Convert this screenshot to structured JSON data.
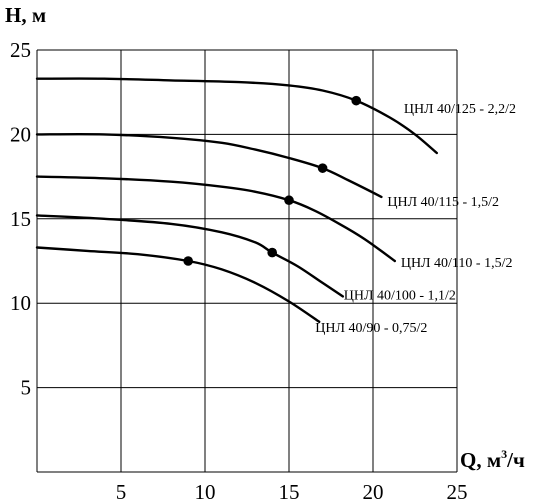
{
  "chart_data": {
    "type": "line",
    "title": "",
    "ylabel": "H, м",
    "xlabel_main": "Q, м",
    "xlabel_sup": "3",
    "xlabel_tail": "/ч",
    "xlim": [
      0,
      25
    ],
    "ylim": [
      0,
      25
    ],
    "x_ticks": [
      "5",
      "10",
      "15",
      "20",
      "25"
    ],
    "y_ticks": [
      "5",
      "10",
      "15",
      "20",
      "25"
    ],
    "grid": true,
    "series": [
      {
        "name": "ЦНЛ 40/125 - 2,2/2",
        "x": [
          0,
          4,
          8,
          12,
          15,
          17,
          19,
          21,
          22.5,
          23.8
        ],
        "y": [
          23.3,
          23.3,
          23.2,
          23.1,
          22.9,
          22.6,
          22.0,
          21.0,
          20.0,
          18.9
        ],
        "point": [
          19,
          22.0
        ]
      },
      {
        "name": "ЦНЛ 40/115 - 1,5/2",
        "x": [
          0,
          4,
          8,
          11,
          13,
          15,
          17,
          18.5,
          20.5
        ],
        "y": [
          20.0,
          20.0,
          19.8,
          19.5,
          19.1,
          18.6,
          18.0,
          17.3,
          16.3
        ],
        "point": [
          17,
          18.0
        ]
      },
      {
        "name": "ЦНЛ 40/110 - 1,5/2",
        "x": [
          0,
          4,
          8,
          11,
          13,
          15,
          16.5,
          18,
          19.5,
          21.3
        ],
        "y": [
          17.5,
          17.4,
          17.2,
          16.9,
          16.6,
          16.1,
          15.5,
          14.7,
          13.8,
          12.5
        ],
        "point": [
          15,
          16.1
        ]
      },
      {
        "name": "ЦНЛ 40/100 - 1,1/2",
        "x": [
          0,
          4,
          8,
          11,
          13,
          14,
          15.5,
          17,
          18.2
        ],
        "y": [
          15.2,
          15.0,
          14.7,
          14.2,
          13.6,
          13.0,
          12.2,
          11.2,
          10.4
        ],
        "point": [
          14,
          13.0
        ]
      },
      {
        "name": "ЦНЛ 40/90 - 0,75/2",
        "x": [
          0,
          3,
          6,
          9,
          11,
          13,
          15,
          16.8
        ],
        "y": [
          13.3,
          13.1,
          12.9,
          12.5,
          12.0,
          11.2,
          10.1,
          8.9
        ],
        "point": [
          9,
          12.5
        ]
      }
    ]
  }
}
